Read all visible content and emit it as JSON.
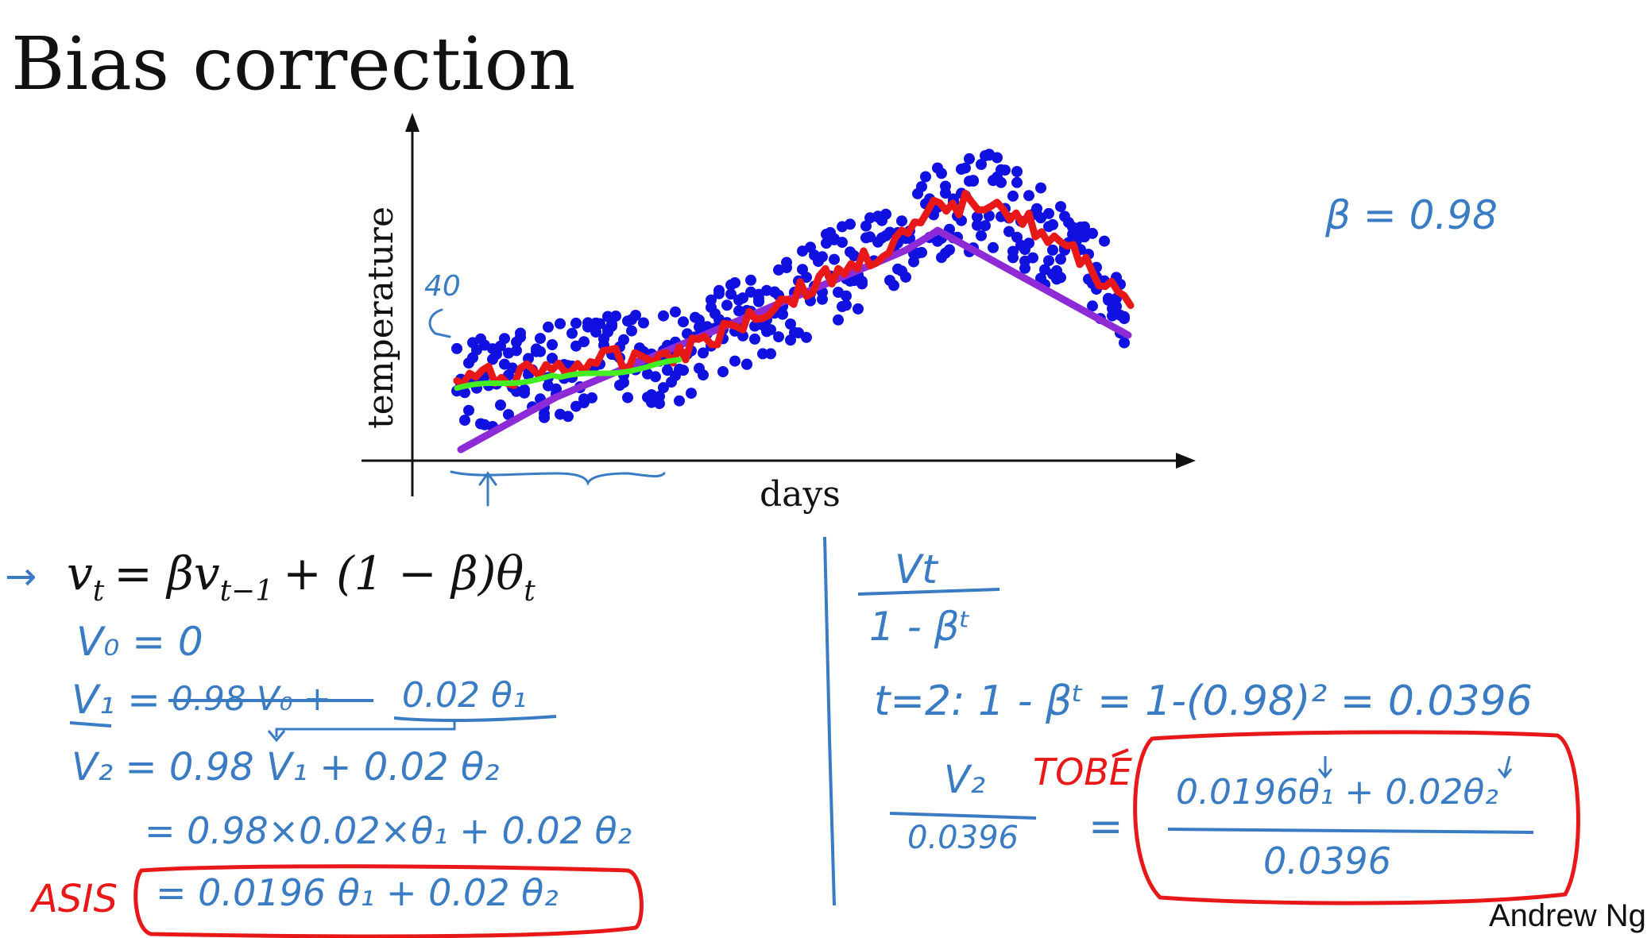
{
  "slide": {
    "title": "Bias correction",
    "footer": "Andrew Ng"
  },
  "chart_data": {
    "type": "scatter",
    "title": "",
    "xlabel": "days",
    "ylabel": "temperature",
    "grid": false,
    "series": [
      {
        "name": "",
        "color": "#1010e0",
        "kind": "points"
      },
      {
        "name": "",
        "color": "#e81818",
        "kind": "line"
      },
      {
        "name": "",
        "color": "#44ee22",
        "kind": "line"
      },
      {
        "name": "",
        "color": "#8e2bd6",
        "kind": "line"
      }
    ]
  },
  "annotations": {
    "forty": "40",
    "beta": "β = 0.98"
  },
  "left_math": {
    "formula_arrow": "→",
    "formula": "v_t = βv_{t−1} + (1 − β)θ_t",
    "formula_v": "v",
    "formula_t": "t",
    "formula_eq": "= βv",
    "formula_tm1": "t−1",
    "formula_rest": "+ (1 − β)θ",
    "line_v0": "V₀ = 0",
    "line_v1_lhs": "V₁ =",
    "line_v1_struck": "0.98 V₀ +",
    "line_v1_rhs": "0.02 θ₁",
    "line_v2": "V₂ = 0.98 V₁ + 0.02 θ₂",
    "line_expand": "= 0.98×0.02×θ₁ + 0.02 θ₂",
    "line_result": "= 0.0196 θ₁ + 0.02 θ₂",
    "label_asis": "ASIS"
  },
  "right_math": {
    "frac_num": "Vt",
    "frac_den": "1 - βᵗ",
    "t2_line": "t=2:   1 - βᵗ  =  1-(0.98)²  =  0.0396",
    "v2_num": "V₂",
    "v2_den": "0.0396",
    "equals": "=",
    "tobe_num": "0.0196θ₁ + 0.02θ₂",
    "tobe_den": "0.0396",
    "label_tobe": "TOBE"
  }
}
